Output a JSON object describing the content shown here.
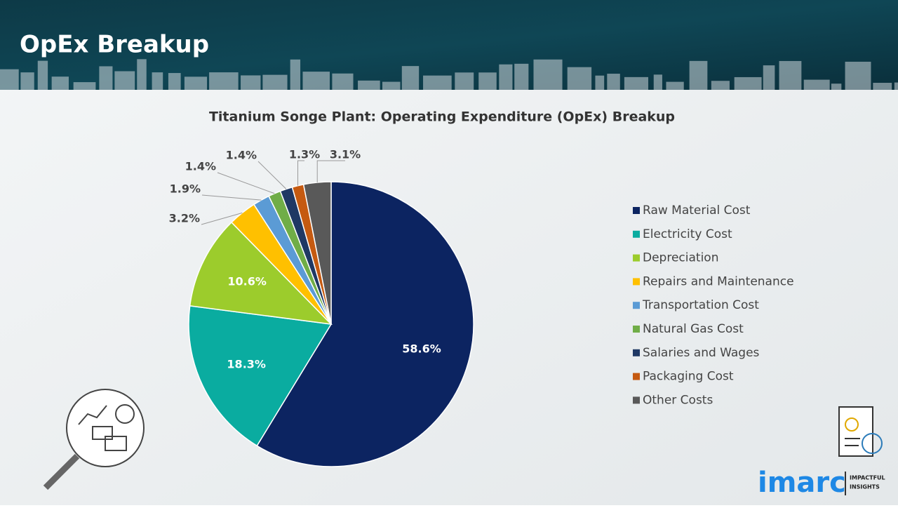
{
  "header": {
    "title": "OpEx Breakup"
  },
  "chart_data": {
    "type": "pie",
    "title": "Titanium Songe Plant: Operating Expenditure (OpEx) Breakup",
    "categories": [
      "Raw Material Cost",
      "Electricity Cost",
      "Depreciation",
      "Repairs and Maintenance",
      "Transportation Cost",
      "Natural Gas Cost",
      "Salaries and Wages",
      "Packaging Cost",
      "Other Costs"
    ],
    "values": [
      58.6,
      18.3,
      10.6,
      3.2,
      1.9,
      1.4,
      1.4,
      1.3,
      3.1
    ],
    "value_labels": [
      "58.6%",
      "18.3%",
      "10.6%",
      "3.2%",
      "1.9%",
      "1.4%",
      "1.4%",
      "1.3%",
      "3.1%"
    ],
    "colors": [
      "#0c2461",
      "#0aaca0",
      "#9ccc2c",
      "#ffc000",
      "#5b9bd5",
      "#70ad47",
      "#1f3864",
      "#c55a11",
      "#595959"
    ],
    "legend": "right"
  },
  "branding": {
    "logo": "imarc",
    "tagline": [
      "IMPACTFUL",
      "INSIGHTS"
    ]
  }
}
